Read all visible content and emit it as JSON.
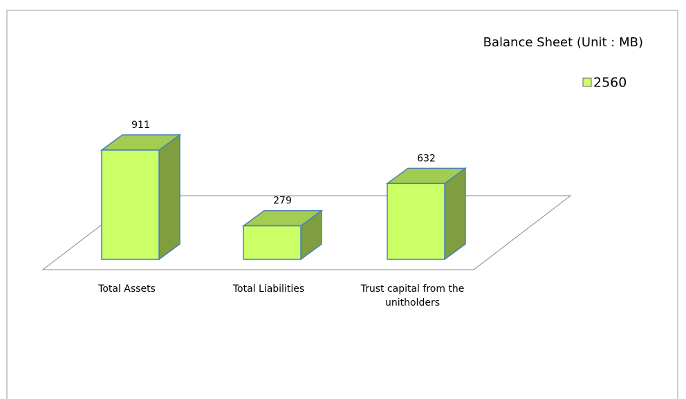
{
  "chart_data": {
    "type": "bar3d",
    "title": "Balance Sheet (Unit : MB)",
    "categories": [
      "Total Assets",
      "Total Liabilities",
      "Trust capital from the unitholders"
    ],
    "series": [
      {
        "name": "2560",
        "color": "#ccff66",
        "values": [
          911,
          279,
          632
        ]
      }
    ],
    "legend": "top-right"
  }
}
